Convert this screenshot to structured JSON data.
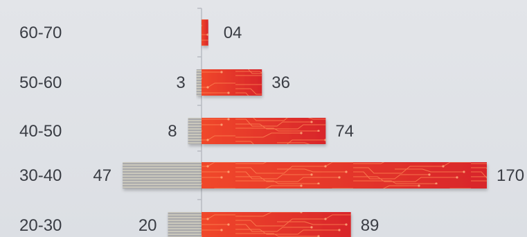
{
  "chart_data": {
    "type": "bar",
    "orientation": "horizontal-diverging",
    "categories": [
      "60-70",
      "50-60",
      "40-50",
      "30-40",
      "20-30"
    ],
    "series": [
      {
        "values": [
          0,
          3,
          8,
          47,
          20
        ],
        "labels": [
          "",
          "3",
          "8",
          "47",
          "20"
        ]
      },
      {
        "values": [
          4,
          36,
          74,
          170,
          89
        ],
        "labels": [
          "04",
          "36",
          "74",
          "170",
          "89"
        ]
      }
    ],
    "title": "",
    "xlabel": "",
    "ylabel": "",
    "colors": {
      "left": "#a9a9ab",
      "left_stripe": "#f2edd0",
      "right": "#e3342a",
      "right_circuit": "#ff8a55",
      "axis": "#b8bbc2",
      "text": "#3a3d44"
    },
    "grid": false,
    "legend": "none"
  }
}
